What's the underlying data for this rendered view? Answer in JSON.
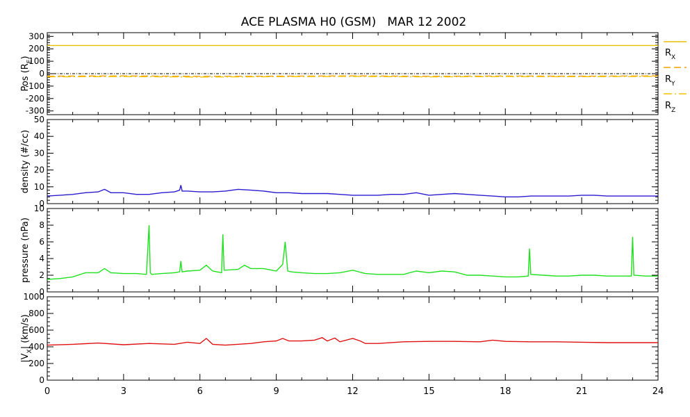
{
  "chart_data": {
    "title": "ACE PLASMA H0 (GSM)   MAR 12 2002",
    "type": "line",
    "x": {
      "range": [
        0,
        24
      ],
      "ticks": [
        0,
        3,
        6,
        9,
        12,
        15,
        18,
        21,
        24
      ],
      "tick_labels": [
        "0",
        "3",
        "6",
        "9",
        "12",
        "15",
        "18",
        "21",
        "24"
      ],
      "minor_step": 1
    },
    "grid": false,
    "panels": [
      {
        "id": "pos",
        "ylabel": "Pos (R",
        "ylabel_sub": "E",
        "ylabel_close": ")",
        "ylim": [
          -330,
          330
        ],
        "yticks": [
          300,
          200,
          100,
          0,
          -100,
          -200,
          -300
        ],
        "ytick_labels": [
          "300",
          "200",
          "100",
          "0",
          "-100",
          "-200",
          "-300"
        ],
        "minor_step": 20,
        "zero_line": true,
        "legend_placement": "right",
        "series": [
          {
            "name": "R",
            "name_sub": "X",
            "color": "#e8c000",
            "style": "solid",
            "x": [
              0,
              24
            ],
            "values": [
              227,
              227
            ]
          },
          {
            "name": "R",
            "name_sub": "Y",
            "color": "#f0a000",
            "style": "dashed",
            "x": [
              0,
              3,
              6,
              9,
              12,
              15,
              18,
              21,
              24
            ],
            "values": [
              -20,
              -18,
              -22,
              -20,
              -18,
              -21,
              -19,
              -20,
              -18
            ]
          },
          {
            "name": "R",
            "name_sub": "Z",
            "color": "#f5c000",
            "style": "dashdot",
            "x": [
              0,
              3,
              6,
              9,
              12,
              15,
              18,
              21,
              24
            ],
            "values": [
              -25,
              -23,
              -27,
              -24,
              -22,
              -26,
              -23,
              -24,
              -22
            ]
          }
        ]
      },
      {
        "id": "density",
        "ylabel": "density (#/cc)",
        "ylim": [
          0,
          50
        ],
        "yticks": [
          50,
          40,
          30,
          20,
          10,
          0
        ],
        "ytick_labels": [
          "50",
          "40",
          "30",
          "20",
          "10",
          "0"
        ],
        "minor_step": 2,
        "series": [
          {
            "name": "",
            "color": "#2a1bd0",
            "x": [
              0,
              0.5,
              1,
              1.5,
              2,
              2.25,
              2.5,
              3,
              3.5,
              4,
              4.5,
              5,
              5.2,
              5.25,
              5.3,
              5.5,
              6,
              6.5,
              7,
              7.5,
              8,
              8.5,
              9,
              9.5,
              10,
              10.5,
              11,
              11.5,
              12,
              12.5,
              13,
              13.5,
              14,
              14.5,
              15,
              15.5,
              16,
              16.5,
              17,
              17.5,
              18,
              18.5,
              19,
              19.5,
              20,
              20.5,
              21,
              21.5,
              22,
              22.5,
              23,
              23.5,
              24
            ],
            "values": [
              4.5,
              5,
              5.5,
              6.5,
              7,
              8.5,
              6.5,
              6.5,
              5.5,
              5.5,
              6.5,
              7,
              8,
              11,
              7.5,
              7.5,
              7,
              7,
              7.5,
              8.5,
              8,
              7.5,
              6.5,
              6.5,
              6,
              6,
              6,
              5.5,
              5,
              5,
              5,
              5.5,
              5.5,
              6.5,
              5,
              5.5,
              6,
              5.5,
              5,
              4.5,
              4,
              4,
              4.5,
              4.5,
              4.5,
              4.5,
              5,
              5,
              4.5,
              4.5,
              4.5,
              4.5,
              4.5
            ]
          }
        ]
      },
      {
        "id": "pressure",
        "ylabel": "pressure (nPa)",
        "ylim": [
          0,
          10
        ],
        "yticks": [
          10,
          8,
          6,
          4,
          2,
          0
        ],
        "ytick_labels": [
          "10",
          "8",
          "6",
          "4",
          "2",
          "0"
        ],
        "minor_step": 0.4,
        "series": [
          {
            "name": "",
            "color": "#1ee11e",
            "x": [
              0,
              0.5,
              1,
              1.5,
              2,
              2.25,
              2.5,
              3,
              3.5,
              3.9,
              4.0,
              4.05,
              4.1,
              4.5,
              5,
              5.2,
              5.25,
              5.3,
              5.5,
              6,
              6.25,
              6.5,
              6.85,
              6.9,
              6.95,
              7.5,
              7.75,
              8,
              8.5,
              9,
              9.25,
              9.35,
              9.45,
              9.6,
              10,
              10.5,
              11,
              11.5,
              12,
              12.5,
              13,
              13.5,
              14,
              14.5,
              15,
              15.5,
              16,
              16.5,
              17,
              17.5,
              18,
              18.5,
              18.9,
              18.95,
              19.0,
              19.5,
              20,
              20.5,
              21,
              21.5,
              22,
              22.5,
              22.95,
              23.0,
              23.05,
              23.5,
              24
            ],
            "values": [
              1.5,
              1.6,
              1.8,
              2.3,
              2.3,
              2.8,
              2.3,
              2.2,
              2.2,
              2.1,
              8.0,
              2.3,
              2.1,
              2.2,
              2.3,
              2.4,
              3.7,
              2.4,
              2.5,
              2.6,
              3.2,
              2.5,
              2.3,
              6.9,
              2.6,
              2.7,
              3.2,
              2.8,
              2.8,
              2.5,
              3.3,
              6.0,
              2.5,
              2.4,
              2.3,
              2.2,
              2.2,
              2.3,
              2.6,
              2.2,
              2.1,
              2.1,
              2.1,
              2.5,
              2.3,
              2.5,
              2.4,
              2.0,
              2.0,
              1.9,
              1.8,
              1.8,
              1.9,
              5.2,
              2.1,
              2.0,
              1.9,
              1.9,
              2.0,
              2.0,
              1.9,
              1.9,
              1.9,
              6.6,
              2.0,
              1.9,
              1.9
            ]
          }
        ]
      },
      {
        "id": "vx",
        "ylabel": "|V",
        "ylabel_sub": "X",
        "ylabel_close": "| (km/s)",
        "ylim": [
          0,
          1000
        ],
        "yticks": [
          1000,
          800,
          600,
          400,
          200,
          0
        ],
        "ytick_labels": [
          "1000",
          "800",
          "600",
          "400",
          "200",
          "0"
        ],
        "minor_step": 50,
        "series": [
          {
            "name": "",
            "color": "#e01010",
            "x": [
              0,
              1,
              2,
              3,
              4,
              5,
              5.5,
              6,
              6.25,
              6.5,
              7,
              8,
              8.5,
              9,
              9.25,
              9.5,
              10,
              10.5,
              10.8,
              11,
              11.3,
              11.5,
              12,
              12.3,
              12.5,
              13,
              14,
              15,
              16,
              17,
              17.5,
              18,
              19,
              20,
              21,
              22,
              23,
              24
            ],
            "values": [
              420,
              430,
              445,
              425,
              440,
              430,
              455,
              440,
              500,
              430,
              420,
              440,
              460,
              470,
              500,
              470,
              470,
              480,
              510,
              470,
              505,
              460,
              500,
              470,
              440,
              440,
              460,
              465,
              465,
              460,
              480,
              465,
              460,
              460,
              455,
              450,
              450,
              450
            ]
          }
        ]
      }
    ]
  }
}
